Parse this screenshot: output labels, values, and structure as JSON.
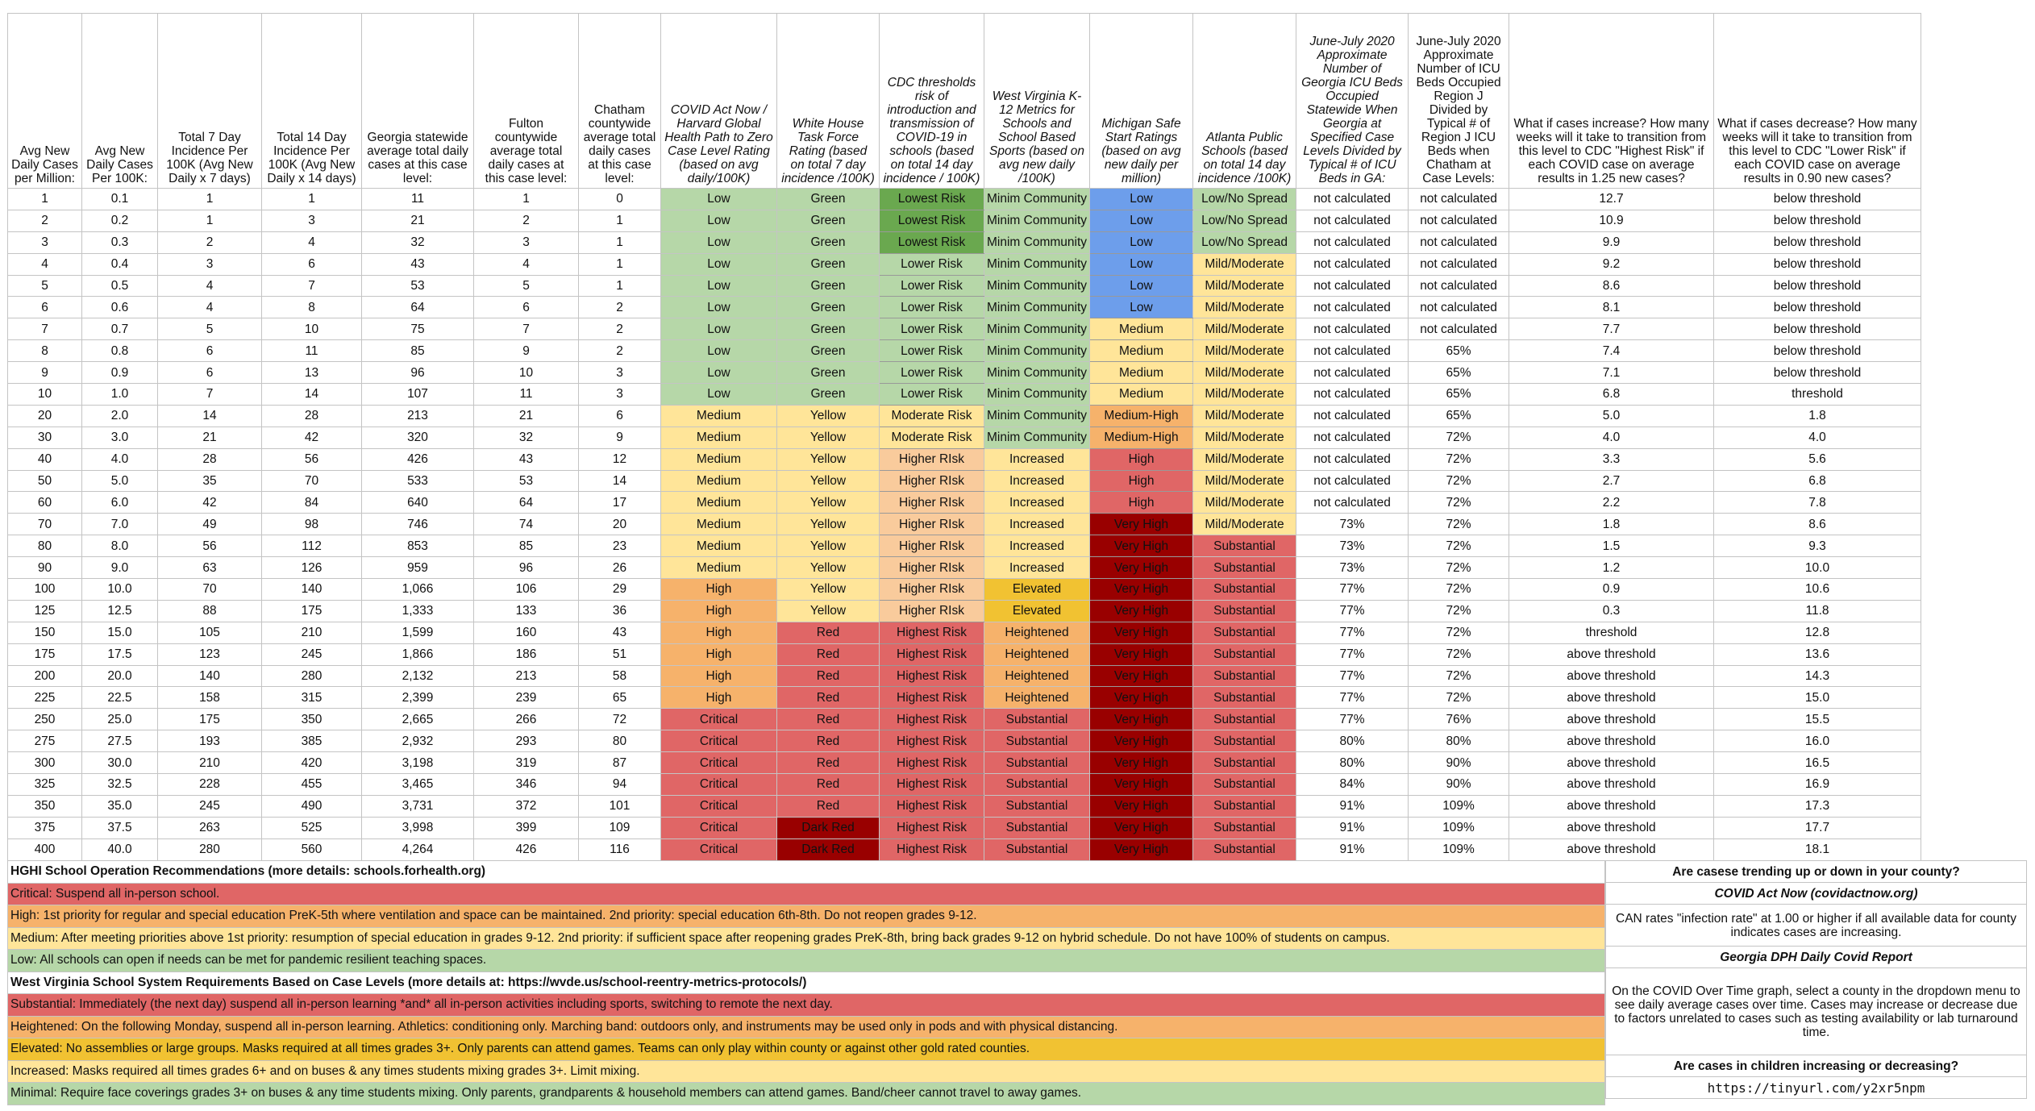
{
  "headers": [
    "Avg New Daily Cases per Million:",
    "Avg New Daily Cases Per 100K:",
    "Total 7 Day Incidence Per 100K (Avg New Daily x 7 days)",
    "Total 14 Day Incidence Per 100K (Avg New Daily x 14 days)",
    "Georgia statewide average total daily cases at this case level:",
    "Fulton countywide average total daily cases at this case level:",
    "Chatham countywide average total daily cases at this case level:",
    "COVID Act Now / Harvard Global Health Path to Zero Case Level Rating (based on avg daily/100K)",
    "White House Task Force Rating (based on total 7 day incidence /100K)",
    "CDC thresholds risk of introduction and transmission of COVID-19 in schools (based on total 14 day incidence / 100K)",
    "West Virginia K-12 Metrics for Schools and School Based Sports (based on avg new daily /100K)",
    "Michigan Safe Start Ratings (based on avg new daily per million)",
    "Atlanta Public Schools (based on total 14 day incidence /100K)",
    "June-July 2020 Approximate Number of Georgia ICU Beds Occupied Statewide When Georgia at Specified Case Levels Divided by Typical # of ICU Beds in GA:",
    "June-July 2020 Approximate Number of ICU Beds Occupied Region J Divided by Typical # of Region J ICU Beds when Chatham at Case Levels:",
    "What if cases increase? How many weeks will it take to transition from this level to CDC \"Highest Risk\" if each COVID case on average results in 1.25 new cases?",
    "What if cases decrease? How many weeks will it take to transition from this level to CDC \"Lower Risk\" if each COVID case on average results in 0.90 new cases?"
  ],
  "rows": [
    [
      "1",
      "0.1",
      "1",
      "1",
      "11",
      "1",
      "0",
      "Low",
      "Green",
      "Lowest Risk",
      "Minim Community",
      "Low",
      "Low/No Spread",
      "not calculated",
      "not calculated",
      "12.7",
      "below threshold"
    ],
    [
      "2",
      "0.2",
      "1",
      "3",
      "21",
      "2",
      "1",
      "Low",
      "Green",
      "Lowest Risk",
      "Minim Community",
      "Low",
      "Low/No Spread",
      "not calculated",
      "not calculated",
      "10.9",
      "below threshold"
    ],
    [
      "3",
      "0.3",
      "2",
      "4",
      "32",
      "3",
      "1",
      "Low",
      "Green",
      "Lowest Risk",
      "Minim Community",
      "Low",
      "Low/No Spread",
      "not calculated",
      "not calculated",
      "9.9",
      "below threshold"
    ],
    [
      "4",
      "0.4",
      "3",
      "6",
      "43",
      "4",
      "1",
      "Low",
      "Green",
      "Lower Risk",
      "Minim Community",
      "Low",
      "Mild/Moderate",
      "not calculated",
      "not calculated",
      "9.2",
      "below threshold"
    ],
    [
      "5",
      "0.5",
      "4",
      "7",
      "53",
      "5",
      "1",
      "Low",
      "Green",
      "Lower Risk",
      "Minim Community",
      "Low",
      "Mild/Moderate",
      "not calculated",
      "not calculated",
      "8.6",
      "below threshold"
    ],
    [
      "6",
      "0.6",
      "4",
      "8",
      "64",
      "6",
      "2",
      "Low",
      "Green",
      "Lower Risk",
      "Minim Community",
      "Low",
      "Mild/Moderate",
      "not calculated",
      "not calculated",
      "8.1",
      "below threshold"
    ],
    [
      "7",
      "0.7",
      "5",
      "10",
      "75",
      "7",
      "2",
      "Low",
      "Green",
      "Lower Risk",
      "Minim Community",
      "Medium",
      "Mild/Moderate",
      "not calculated",
      "not calculated",
      "7.7",
      "below threshold"
    ],
    [
      "8",
      "0.8",
      "6",
      "11",
      "85",
      "9",
      "2",
      "Low",
      "Green",
      "Lower Risk",
      "Minim Community",
      "Medium",
      "Mild/Moderate",
      "not calculated",
      "65%",
      "7.4",
      "below threshold"
    ],
    [
      "9",
      "0.9",
      "6",
      "13",
      "96",
      "10",
      "3",
      "Low",
      "Green",
      "Lower Risk",
      "Minim Community",
      "Medium",
      "Mild/Moderate",
      "not calculated",
      "65%",
      "7.1",
      "below threshold"
    ],
    [
      "10",
      "1.0",
      "7",
      "14",
      "107",
      "11",
      "3",
      "Low",
      "Green",
      "Lower Risk",
      "Minim Community",
      "Medium",
      "Mild/Moderate",
      "not calculated",
      "65%",
      "6.8",
      "threshold"
    ],
    [
      "20",
      "2.0",
      "14",
      "28",
      "213",
      "21",
      "6",
      "Medium",
      "Yellow",
      "Moderate Risk",
      "Minim Community",
      "Medium-High",
      "Mild/Moderate",
      "not calculated",
      "65%",
      "5.0",
      "1.8"
    ],
    [
      "30",
      "3.0",
      "21",
      "42",
      "320",
      "32",
      "9",
      "Medium",
      "Yellow",
      "Moderate Risk",
      "Minim Community",
      "Medium-High",
      "Mild/Moderate",
      "not calculated",
      "72%",
      "4.0",
      "4.0"
    ],
    [
      "40",
      "4.0",
      "28",
      "56",
      "426",
      "43",
      "12",
      "Medium",
      "Yellow",
      "Higher RIsk",
      "Increased",
      "High",
      "Mild/Moderate",
      "not calculated",
      "72%",
      "3.3",
      "5.6"
    ],
    [
      "50",
      "5.0",
      "35",
      "70",
      "533",
      "53",
      "14",
      "Medium",
      "Yellow",
      "Higher RIsk",
      "Increased",
      "High",
      "Mild/Moderate",
      "not calculated",
      "72%",
      "2.7",
      "6.8"
    ],
    [
      "60",
      "6.0",
      "42",
      "84",
      "640",
      "64",
      "17",
      "Medium",
      "Yellow",
      "Higher RIsk",
      "Increased",
      "High",
      "Mild/Moderate",
      "not calculated",
      "72%",
      "2.2",
      "7.8"
    ],
    [
      "70",
      "7.0",
      "49",
      "98",
      "746",
      "74",
      "20",
      "Medium",
      "Yellow",
      "Higher RIsk",
      "Increased",
      "Very High",
      "Mild/Moderate",
      "73%",
      "72%",
      "1.8",
      "8.6"
    ],
    [
      "80",
      "8.0",
      "56",
      "112",
      "853",
      "85",
      "23",
      "Medium",
      "Yellow",
      "Higher RIsk",
      "Increased",
      "Very High",
      "Substantial",
      "73%",
      "72%",
      "1.5",
      "9.3"
    ],
    [
      "90",
      "9.0",
      "63",
      "126",
      "959",
      "96",
      "26",
      "Medium",
      "Yellow",
      "Higher RIsk",
      "Increased",
      "Very High",
      "Substantial",
      "73%",
      "72%",
      "1.2",
      "10.0"
    ],
    [
      "100",
      "10.0",
      "70",
      "140",
      "1,066",
      "106",
      "29",
      "High",
      "Yellow",
      "Higher RIsk",
      "Elevated",
      "Very High",
      "Substantial",
      "77%",
      "72%",
      "0.9",
      "10.6"
    ],
    [
      "125",
      "12.5",
      "88",
      "175",
      "1,333",
      "133",
      "36",
      "High",
      "Yellow",
      "Higher RIsk",
      "Elevated",
      "Very High",
      "Substantial",
      "77%",
      "72%",
      "0.3",
      "11.8"
    ],
    [
      "150",
      "15.0",
      "105",
      "210",
      "1,599",
      "160",
      "43",
      "High",
      "Red",
      "Highest Risk",
      "Heightened",
      "Very High",
      "Substantial",
      "77%",
      "72%",
      "threshold",
      "12.8"
    ],
    [
      "175",
      "17.5",
      "123",
      "245",
      "1,866",
      "186",
      "51",
      "High",
      "Red",
      "Highest Risk",
      "Heightened",
      "Very High",
      "Substantial",
      "77%",
      "72%",
      "above threshold",
      "13.6"
    ],
    [
      "200",
      "20.0",
      "140",
      "280",
      "2,132",
      "213",
      "58",
      "High",
      "Red",
      "Highest Risk",
      "Heightened",
      "Very High",
      "Substantial",
      "77%",
      "72%",
      "above threshold",
      "14.3"
    ],
    [
      "225",
      "22.5",
      "158",
      "315",
      "2,399",
      "239",
      "65",
      "High",
      "Red",
      "Highest Risk",
      "Heightened",
      "Very High",
      "Substantial",
      "77%",
      "72%",
      "above threshold",
      "15.0"
    ],
    [
      "250",
      "25.0",
      "175",
      "350",
      "2,665",
      "266",
      "72",
      "Critical",
      "Red",
      "Highest Risk",
      "Substantial",
      "Very High",
      "Substantial",
      "77%",
      "76%",
      "above threshold",
      "15.5"
    ],
    [
      "275",
      "27.5",
      "193",
      "385",
      "2,932",
      "293",
      "80",
      "Critical",
      "Red",
      "Highest Risk",
      "Substantial",
      "Very High",
      "Substantial",
      "80%",
      "80%",
      "above threshold",
      "16.0"
    ],
    [
      "300",
      "30.0",
      "210",
      "420",
      "3,198",
      "319",
      "87",
      "Critical",
      "Red",
      "Highest Risk",
      "Substantial",
      "Very High",
      "Substantial",
      "80%",
      "90%",
      "above threshold",
      "16.5"
    ],
    [
      "325",
      "32.5",
      "228",
      "455",
      "3,465",
      "346",
      "94",
      "Critical",
      "Red",
      "Highest Risk",
      "Substantial",
      "Very High",
      "Substantial",
      "84%",
      "90%",
      "above threshold",
      "16.9"
    ],
    [
      "350",
      "35.0",
      "245",
      "490",
      "3,731",
      "372",
      "101",
      "Critical",
      "Red",
      "Highest Risk",
      "Substantial",
      "Very High",
      "Substantial",
      "91%",
      "109%",
      "above threshold",
      "17.3"
    ],
    [
      "375",
      "37.5",
      "263",
      "525",
      "3,998",
      "399",
      "109",
      "Critical",
      "Dark Red",
      "Highest Risk",
      "Substantial",
      "Very High",
      "Substantial",
      "91%",
      "109%",
      "above threshold",
      "17.7"
    ],
    [
      "400",
      "40.0",
      "280",
      "560",
      "4,264",
      "426",
      "116",
      "Critical",
      "Dark Red",
      "Highest Risk",
      "Substantial",
      "Very High",
      "Substantial",
      "91%",
      "109%",
      "above threshold",
      "18.1"
    ]
  ],
  "notes": {
    "hghi_title": "HGHI School Operation Recommendations (more details: schools.forhealth.org)",
    "hghi_critical": "Critical: Suspend all in-person school.",
    "hghi_high": "High: 1st priority for regular and special education PreK-5th where ventilation and space can be maintained. 2nd priority: special education 6th-8th. Do not reopen grades 9-12.",
    "hghi_medium": "Medium: After meeting priorities above 1st priority: resumption of special education in grades 9-12. 2nd priority: if sufficient space after reopening grades PreK-8th, bring back grades 9-12 on hybrid schedule. Do not have 100% of students on campus.",
    "hghi_low": "Low: All schools can open if needs can be met for pandemic resilient teaching spaces.",
    "wv_title": "West Virginia School System Requirements Based on Case Levels (more details at: https://wvde.us/school-reentry-metrics-protocols/)",
    "wv_substantial": "Substantial: Immediately (the next day) suspend all in-person learning *and* all in-person activities including sports, switching to remote the next day.",
    "wv_heightened": "Heightened: On the following Monday, suspend all in-person learning. Athletics: conditioning only. Marching band: outdoors only, and instruments may be used only in pods and with physical distancing.",
    "wv_elevated": "Elevated: No assemblies or large groups. Masks required at all times grades 3+. Only parents can attend games. Teams can only play within county or against other gold rated counties.",
    "wv_increased": "Increased: Masks required all times grades 6+ and on buses & any times students mixing grades 3+. Limit mixing.",
    "wv_minimal": "Minimal: Require face coverings grades 3+ on buses & any time students mixing. Only parents, grandparents & household members can attend games. Band/cheer cannot travel to away games."
  },
  "side": {
    "q1": "Are casese trending up or down in your county?",
    "can_title": "COVID Act Now (covidactnow.org)",
    "can_text": "CAN rates \"infection rate\" at 1.00 or higher if all available data for county indicates cases are increasing.",
    "dph_title": "Georgia DPH Daily Covid Report",
    "dph_text": "On the COVID Over Time graph, select a county in the dropdown menu to see daily average cases over time. Cases may increase or decrease due to factors unrelated to cases such as testing availability or lab turnaround time.",
    "q2": "Are cases in children increasing or decreasing?",
    "link": "https://tinyurl.com/y2xr5npm"
  },
  "colors": {
    "light_green": "#b6d7a8",
    "dark_green": "#6aa84f",
    "blue": "#6d9eeb",
    "light_yellow": "#ffe599",
    "light_orange": "#f9cb9c",
    "orange": "#f6b26b",
    "red": "#e06666",
    "dark_red": "#990000",
    "gold": "#f1c232"
  }
}
